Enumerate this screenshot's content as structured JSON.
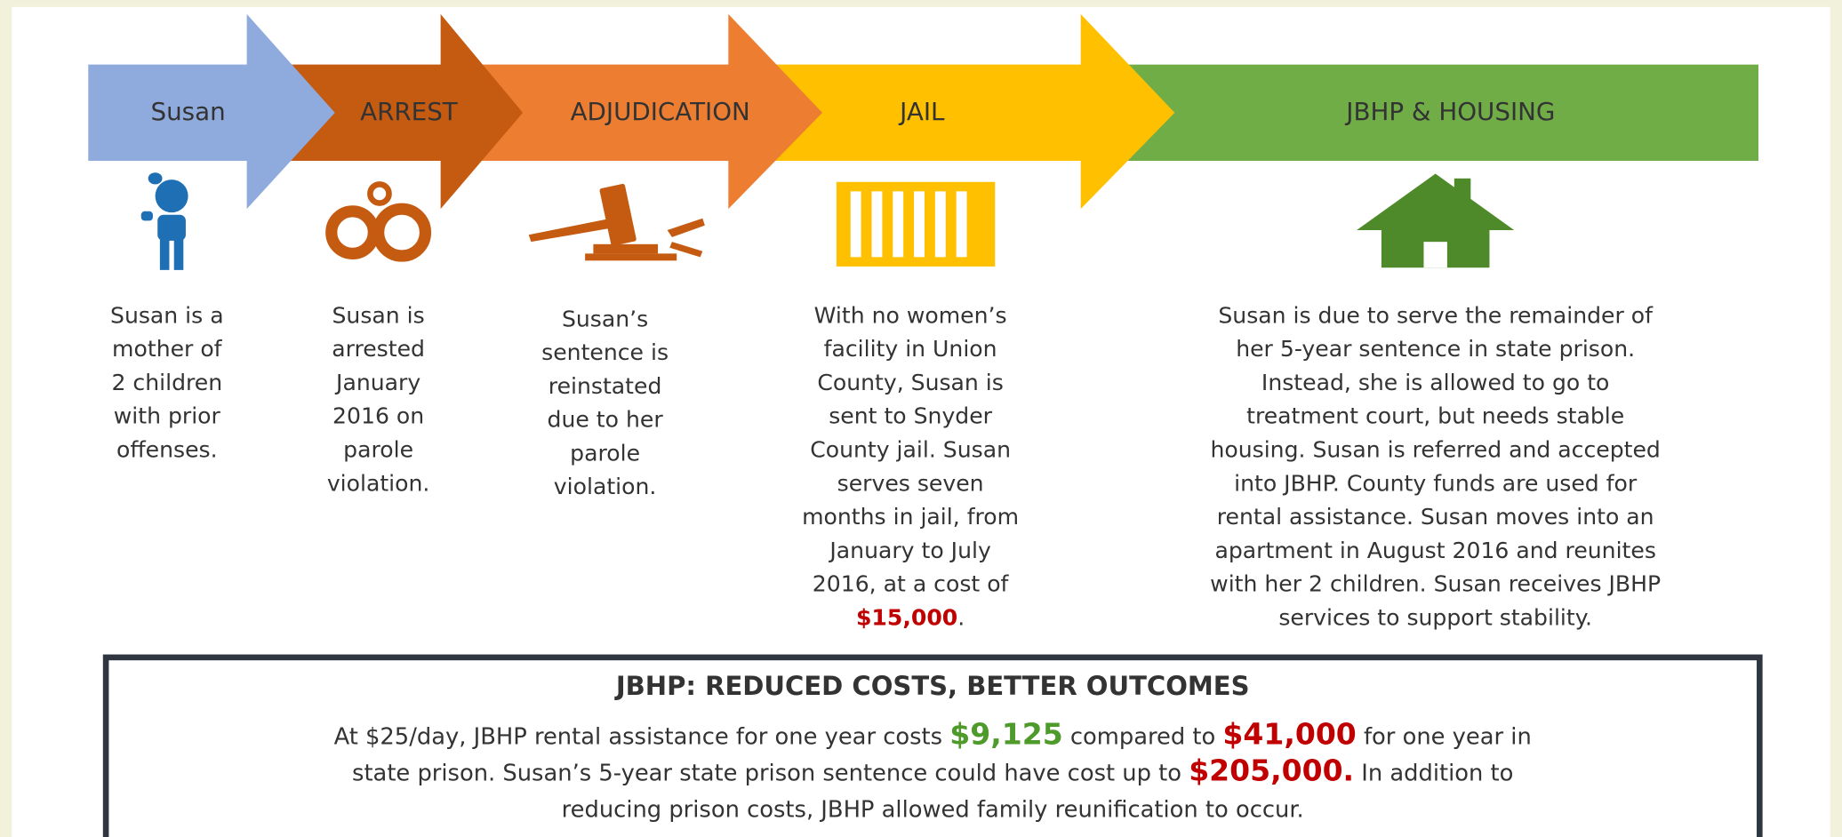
{
  "stages": [
    {
      "label": "Susan",
      "lines": [
        "Susan is a",
        "mother of",
        "2 children",
        "with prior",
        "offenses."
      ]
    },
    {
      "label": "ARREST",
      "lines": [
        "Susan is",
        "arrested",
        "January",
        "2016 on",
        "parole",
        "violation."
      ]
    },
    {
      "label": "ADJUDICATION",
      "lines": [
        "Susan’s",
        "sentence is",
        "reinstated",
        "due to her",
        "parole",
        "violation."
      ]
    },
    {
      "label": "JAIL",
      "lines": [
        "With no women’s",
        "facility in Union",
        "County, Susan is",
        "sent to Snyder",
        "County jail. Susan",
        "serves  seven",
        "months in jail, from",
        "January to July",
        "2016, at a cost of"
      ],
      "cost": "$15,000",
      "cost_suffix": "."
    },
    {
      "label": "JBHP & HOUSING",
      "lines": [
        "Susan is due to serve the remainder of",
        "her 5-year sentence in state prison.",
        "Instead, she is allowed to go to",
        "treatment court, but needs stable",
        "housing. Susan is referred and accepted",
        "into JBHP. County funds are used for",
        "rental assistance. Susan moves into an",
        "apartment in August 2016 and reunites",
        "with her 2 children. Susan receives JBHP",
        "services to support stability."
      ]
    }
  ],
  "summary": {
    "title": "JBHP: REDUCED COSTS, BETTER OUTCOMES",
    "lines": [
      [
        {
          "text": "At $25/day, JBHP rental assistance for one year costs "
        },
        {
          "text": "$9,125",
          "color": "#4e9a2a"
        },
        {
          "text": " compared to "
        },
        {
          "text": "$41,000",
          "color": "#c00000"
        },
        {
          "text": " for one year in"
        }
      ],
      [
        {
          "text": "state prison. Susan’s 5-year state prison sentence could have cost up to "
        },
        {
          "text": "$205,000.",
          "color": "#c00000"
        },
        {
          "text": " In addition to"
        }
      ],
      [
        {
          "text": "reducing prison costs, JBHP allowed family reunification to occur."
        }
      ]
    ]
  }
}
